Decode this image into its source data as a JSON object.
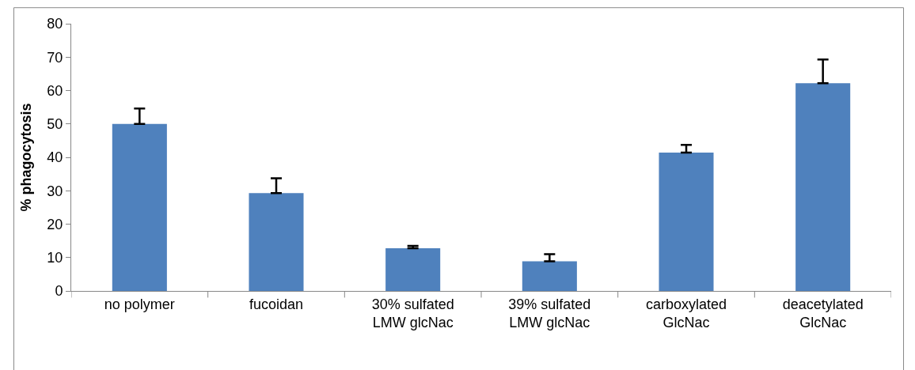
{
  "chart_data": {
    "type": "bar",
    "ylabel": "% phagocytosis",
    "categories": [
      "no polymer",
      "fucoidan",
      "30% sulfated\nLMW glcNac",
      "39% sulfated\nLMW glcNac",
      "carboxylated\nGlcNac",
      "deacetylated\nGlcNac"
    ],
    "values": [
      50.0,
      29.3,
      12.8,
      8.9,
      41.4,
      62.2
    ],
    "errors": [
      [
        50.0,
        54.6
      ],
      [
        29.3,
        33.7
      ],
      [
        12.8,
        13.5
      ],
      [
        8.9,
        11.0
      ],
      [
        41.4,
        43.7
      ],
      [
        62.2,
        69.3
      ]
    ],
    "color": "#4f81bd",
    "ylim": [
      0,
      80
    ],
    "yticks": [
      0,
      10,
      20,
      30,
      40,
      50,
      60,
      70,
      80
    ]
  }
}
